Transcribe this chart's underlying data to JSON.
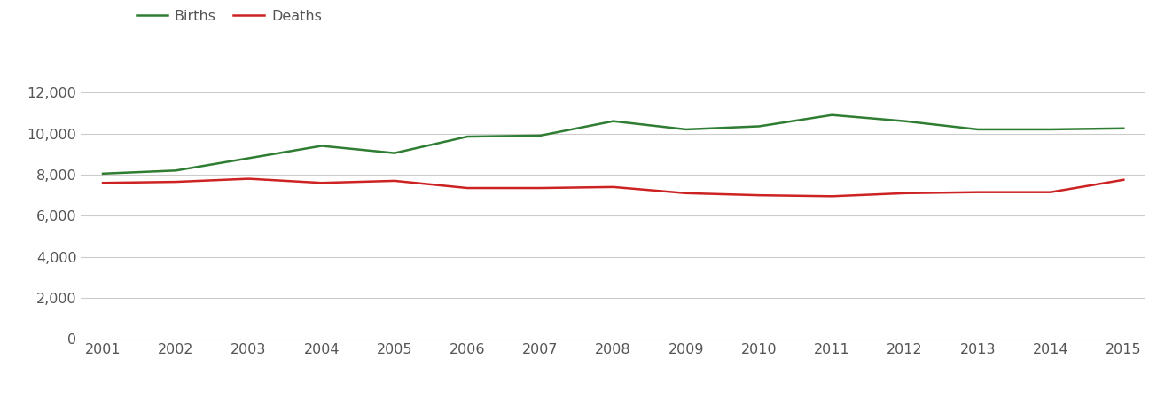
{
  "years": [
    2001,
    2002,
    2003,
    2004,
    2005,
    2006,
    2007,
    2008,
    2009,
    2010,
    2011,
    2012,
    2013,
    2014,
    2015
  ],
  "births": [
    8050,
    8200,
    8800,
    9400,
    9050,
    9850,
    9900,
    10600,
    10200,
    10350,
    10900,
    10600,
    10200,
    10200,
    10250
  ],
  "deaths": [
    7600,
    7650,
    7800,
    7600,
    7700,
    7350,
    7350,
    7400,
    7100,
    7000,
    6950,
    7100,
    7150,
    7150,
    7750
  ],
  "births_color": "#2e7d32",
  "deaths_color": "#cc2222",
  "line_width": 1.8,
  "ylim": [
    0,
    13000
  ],
  "yticks": [
    0,
    2000,
    4000,
    6000,
    8000,
    10000,
    12000
  ],
  "grid_color": "#cccccc",
  "background_color": "#ffffff",
  "legend_labels": [
    "Births",
    "Deaths"
  ],
  "tick_label_color": "#555555",
  "tick_fontsize": 11.5
}
